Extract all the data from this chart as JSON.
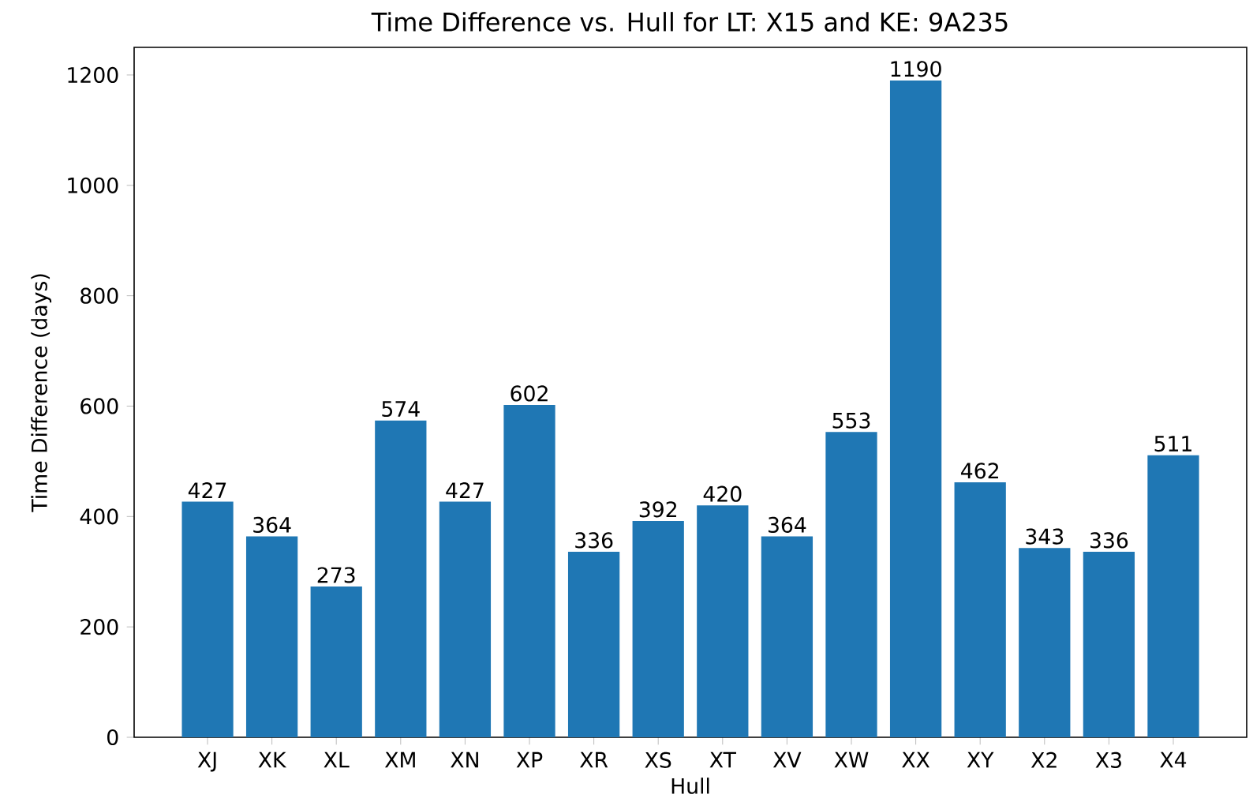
{
  "chart_data": {
    "type": "bar",
    "title": "Time Difference vs. Hull for LT: X15 and KE: 9A235",
    "xlabel": "Hull",
    "ylabel": "Time Difference (days)",
    "categories": [
      "XJ",
      "XK",
      "XL",
      "XM",
      "XN",
      "XP",
      "XR",
      "XS",
      "XT",
      "XV",
      "XW",
      "XX",
      "XY",
      "X2",
      "X3",
      "X4"
    ],
    "values": [
      427,
      364,
      273,
      574,
      427,
      602,
      336,
      392,
      420,
      364,
      553,
      1190,
      462,
      343,
      336,
      511
    ],
    "color": "#1f77b4",
    "ylim": [
      0,
      1250
    ],
    "yticks": [
      0,
      200,
      400,
      600,
      800,
      1000,
      1200
    ],
    "data_labels": true
  }
}
